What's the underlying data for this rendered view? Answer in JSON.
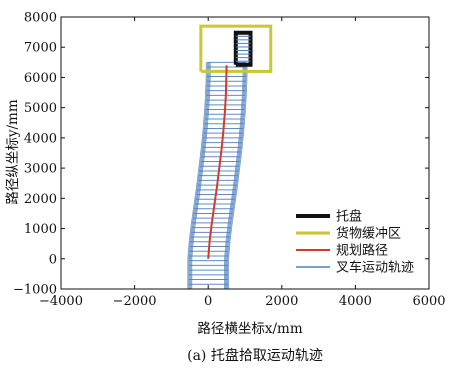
{
  "chart_data": {
    "type": "line",
    "title": "",
    "caption": "(a) 托盘拾取运动轨迹",
    "xlabel": "路径横坐标x/mm",
    "ylabel": "路径纵坐标y/mm",
    "xlim": [
      -4000,
      6000
    ],
    "ylim": [
      -1000,
      8000
    ],
    "xticks": [
      -4000,
      -2000,
      0,
      2000,
      4000,
      6000
    ],
    "yticks": [
      -1000,
      0,
      1000,
      2000,
      3000,
      4000,
      5000,
      6000,
      7000,
      8000
    ],
    "xtick_labels": [
      "−4000",
      "−2000",
      "0",
      "2000",
      "4000",
      "6000"
    ],
    "ytick_labels": [
      "−1000",
      "0",
      "1000",
      "2000",
      "3000",
      "4000",
      "5000",
      "6000",
      "7000",
      "8000"
    ],
    "grid": false,
    "legend_position": "lower-right",
    "series": [
      {
        "name": "托盘",
        "color": "#111111",
        "kind": "rectangle",
        "x": [
          750,
          750,
          1150,
          1150,
          750
        ],
        "y": [
          6420,
          7480,
          7480,
          6420,
          6420
        ]
      },
      {
        "name": "货物缓冲区",
        "color": "#c8c832",
        "kind": "rectangle",
        "x": [
          -200,
          -200,
          1700,
          1700,
          -200
        ],
        "y": [
          6200,
          7700,
          7700,
          6200,
          6200
        ]
      },
      {
        "name": "规划路径",
        "color": "#d23a2e",
        "kind": "line",
        "x": [
          0,
          40,
          100,
          170,
          240,
          300,
          360,
          410,
          450,
          480,
          500
        ],
        "y": [
          0,
          600,
          1200,
          1800,
          2400,
          3000,
          3600,
          4200,
          4800,
          5400,
          6400
        ]
      },
      {
        "name": "叉车运动轨迹",
        "color": "#4f80bd",
        "kind": "footprints",
        "x_center": [
          0,
          40,
          100,
          170,
          240,
          300,
          360,
          410,
          450,
          480,
          500
        ],
        "y_center": [
          0,
          600,
          1200,
          1800,
          2400,
          3000,
          3600,
          4200,
          4800,
          5400,
          6000
        ],
        "width": 1000,
        "y_range": [
          -1000,
          6500
        ]
      }
    ]
  }
}
